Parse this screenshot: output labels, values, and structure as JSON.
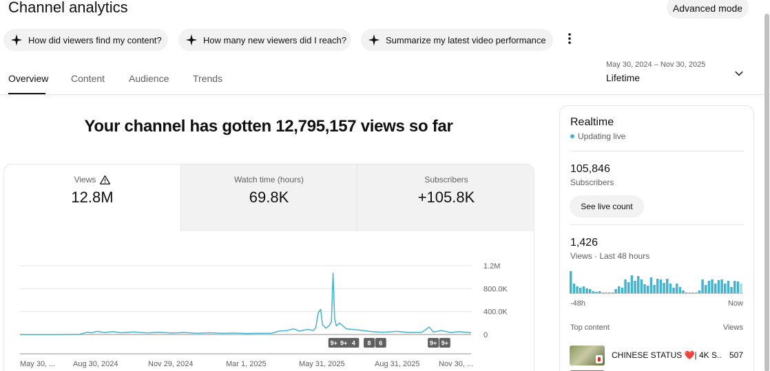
{
  "header": {
    "title": "Channel analytics",
    "advanced_mode": "Advanced mode"
  },
  "chips": [
    {
      "label": "How did viewers find my content?"
    },
    {
      "label": "How many new viewers did I reach?"
    },
    {
      "label": "Summarize my latest video performance"
    }
  ],
  "tabs": [
    {
      "label": "Overview",
      "active": true
    },
    {
      "label": "Content"
    },
    {
      "label": "Audience"
    },
    {
      "label": "Trends"
    }
  ],
  "date_picker": {
    "range": "May 30, 2024 – Nov 30, 2025",
    "label": "Lifetime"
  },
  "headline": "Your channel has gotten 12,795,157 views so far",
  "metrics": [
    {
      "label": "Views",
      "value": "12.8M",
      "warning": true
    },
    {
      "label": "Watch time (hours)",
      "value": "69.8K"
    },
    {
      "label": "Subscribers",
      "value": "+105.8K"
    }
  ],
  "chart_data": {
    "type": "line",
    "series_color": "#41b4d2",
    "ylim": [
      0,
      1200000
    ],
    "y_ticks": [
      "1.2M",
      "800.0K",
      "400.0K",
      "0"
    ],
    "y_tick_values": [
      1200000,
      800000,
      400000,
      0
    ],
    "x_tick_labels": [
      "May 30, ...",
      "Aug 30, 2024",
      "Nov 29, 2024",
      "Mar 1, 2025",
      "May 31, 2025",
      "Aug 31, 2025",
      "Nov 30, ..."
    ],
    "x_range": [
      "2024-05-30",
      "2025-11-30"
    ],
    "grid": true,
    "points": [
      [
        "2024-05-30",
        0
      ],
      [
        "2024-07-15",
        0
      ],
      [
        "2024-08-10",
        2000
      ],
      [
        "2024-08-20",
        40000
      ],
      [
        "2024-08-25",
        30000
      ],
      [
        "2024-09-01",
        55000
      ],
      [
        "2024-09-10",
        35000
      ],
      [
        "2024-09-20",
        50000
      ],
      [
        "2024-10-01",
        30000
      ],
      [
        "2024-10-15",
        45000
      ],
      [
        "2024-11-01",
        28000
      ],
      [
        "2024-11-15",
        40000
      ],
      [
        "2024-12-01",
        25000
      ],
      [
        "2024-12-15",
        35000
      ],
      [
        "2025-01-01",
        22000
      ],
      [
        "2025-01-15",
        30000
      ],
      [
        "2025-02-01",
        20000
      ],
      [
        "2025-02-15",
        25000
      ],
      [
        "2025-03-01",
        18000
      ],
      [
        "2025-03-15",
        22000
      ],
      [
        "2025-04-01",
        20000
      ],
      [
        "2025-04-10",
        60000
      ],
      [
        "2025-04-20",
        70000
      ],
      [
        "2025-04-28",
        100000
      ],
      [
        "2025-05-05",
        60000
      ],
      [
        "2025-05-15",
        90000
      ],
      [
        "2025-05-22",
        70000
      ],
      [
        "2025-05-25",
        120000
      ],
      [
        "2025-05-28",
        380000
      ],
      [
        "2025-05-31",
        440000
      ],
      [
        "2025-06-02",
        180000
      ],
      [
        "2025-06-06",
        110000
      ],
      [
        "2025-06-10",
        150000
      ],
      [
        "2025-06-13",
        220000
      ],
      [
        "2025-06-15",
        1070000
      ],
      [
        "2025-06-17",
        280000
      ],
      [
        "2025-06-19",
        150000
      ],
      [
        "2025-06-23",
        200000
      ],
      [
        "2025-07-01",
        100000
      ],
      [
        "2025-07-15",
        80000
      ],
      [
        "2025-08-01",
        50000
      ],
      [
        "2025-08-15",
        40000
      ],
      [
        "2025-09-01",
        55000
      ],
      [
        "2025-09-15",
        35000
      ],
      [
        "2025-10-01",
        40000
      ],
      [
        "2025-10-10",
        130000
      ],
      [
        "2025-10-15",
        45000
      ],
      [
        "2025-10-25",
        70000
      ],
      [
        "2025-11-05",
        35000
      ],
      [
        "2025-11-15",
        50000
      ],
      [
        "2025-11-30",
        30000
      ]
    ],
    "annotations": [
      {
        "label": "9+",
        "date": "2025-06-16"
      },
      {
        "label": "9+",
        "date": "2025-06-28"
      },
      {
        "label": "4",
        "date": "2025-07-10"
      },
      {
        "label": "8",
        "date": "2025-07-29"
      },
      {
        "label": "6",
        "date": "2025-08-12"
      },
      {
        "label": "9+",
        "date": "2025-10-15"
      },
      {
        "label": "9+",
        "date": "2025-10-29"
      }
    ]
  },
  "realtime": {
    "title": "Realtime",
    "live_label": "Updating live",
    "subscribers": "105,846",
    "subscribers_label": "Subscribers",
    "see_live_count": "See live count",
    "views": "1,426",
    "views_label": "Views · Last 48 hours",
    "axis_start": "-48h",
    "axis_end": "Now",
    "top_content_label": "Top content",
    "views_column": "Views",
    "top_video_title": "CHINESE STATUS ❤️| 4K S...",
    "top_video_views": "507",
    "bar_color": "#41b4d2",
    "hourly_views": [
      32,
      14,
      10,
      8,
      10,
      7,
      6,
      3,
      2,
      3,
      1,
      1,
      1,
      1,
      6,
      10,
      8,
      20,
      16,
      26,
      18,
      25,
      20,
      13,
      11,
      23,
      12,
      21,
      20,
      15,
      21,
      14,
      8,
      14,
      9,
      4,
      1,
      1,
      1,
      1,
      4,
      20,
      12,
      18,
      20,
      14,
      19,
      20,
      14,
      18,
      9,
      18,
      17,
      14
    ]
  }
}
